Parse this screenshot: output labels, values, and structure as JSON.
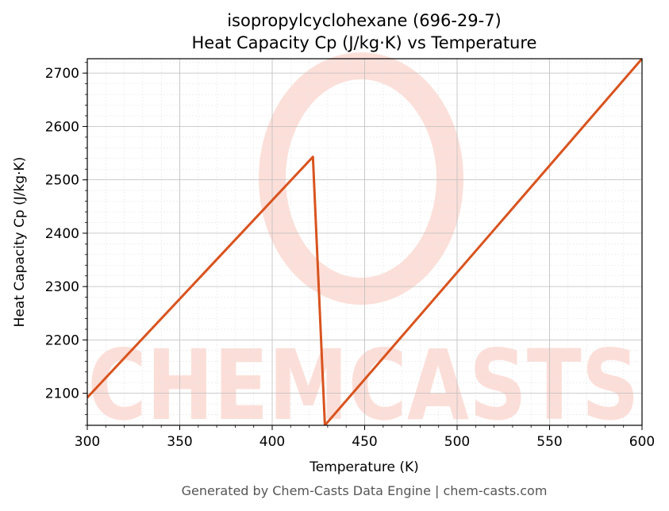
{
  "chart_data": {
    "type": "line",
    "title_line1": "isopropylcyclohexane (696-29-7)",
    "title_line2": "Heat Capacity Cp (J/kg·K) vs Temperature",
    "xlabel": "Temperature (K)",
    "ylabel": "Heat Capacity Cp (J/kg·K)",
    "xlim": [
      300,
      600
    ],
    "ylim": [
      2040,
      2727
    ],
    "xticks": [
      300,
      350,
      400,
      450,
      500,
      550,
      600
    ],
    "yticks": [
      2100,
      2200,
      2300,
      2400,
      2500,
      2600,
      2700
    ],
    "grid": true,
    "series": [
      {
        "color": "#d9531e",
        "x": [
          300,
          422,
          428.5,
          600
        ],
        "y": [
          2092,
          2543,
          2040,
          2727
        ]
      }
    ]
  },
  "watermark": {
    "text": "CHEMCASTS",
    "color": "#fcd9d2"
  },
  "footer": "Generated by Chem-Casts Data Engine | chem-casts.com"
}
